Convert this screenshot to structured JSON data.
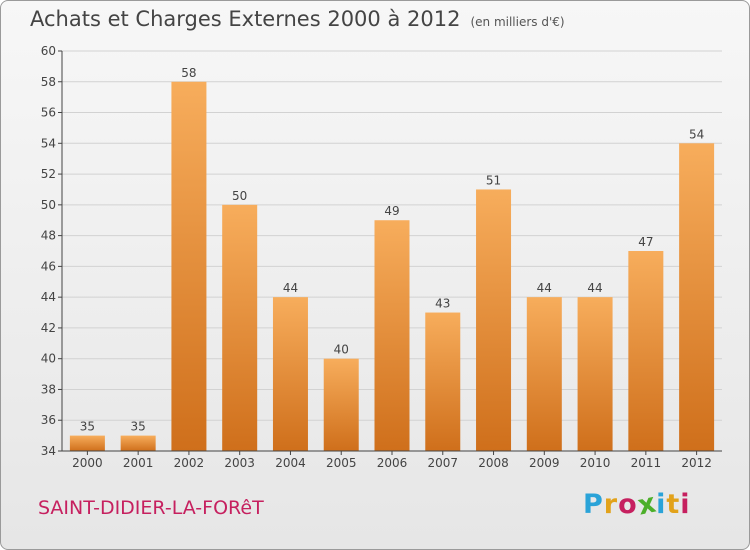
{
  "header": {
    "title": "Achats et Charges Externes 2000 à 2012",
    "subtitle": "(en milliers d'€)"
  },
  "footer": {
    "commune": "SAINT-DIDIER-LA-FORêT",
    "logo_letters": [
      "P",
      "r",
      "o",
      "x",
      "i",
      "t",
      "i"
    ],
    "logo_colors": [
      "#2aa3d8",
      "#e2a21a",
      "#c6205f",
      "#4caf2a",
      "#2aa3d8",
      "#e2a21a",
      "#c6205f"
    ]
  },
  "colors": {
    "bar_light": "#f7ad5c",
    "bar_dark": "#cf6f1b",
    "axis": "#444444",
    "grid": "#d2d2d2"
  },
  "chart_data": {
    "type": "bar",
    "title": "Achats et Charges Externes 2000 à 2012",
    "subtitle": "(en milliers d'€)",
    "categories": [
      "2000",
      "2001",
      "2002",
      "2003",
      "2004",
      "2005",
      "2006",
      "2007",
      "2008",
      "2009",
      "2010",
      "2011",
      "2012"
    ],
    "values": [
      35,
      35,
      58,
      50,
      44,
      40,
      49,
      43,
      51,
      44,
      44,
      47,
      54
    ],
    "data_labels": [
      "35",
      "35",
      "58",
      "50",
      "44",
      "40",
      "49",
      "43",
      "51",
      "44",
      "44",
      "47",
      "54"
    ],
    "ylim": [
      34,
      60
    ],
    "yticks": [
      34,
      36,
      38,
      40,
      42,
      44,
      46,
      48,
      50,
      52,
      54,
      56,
      58,
      60
    ],
    "ytick_labels": [
      "34",
      "36",
      "38",
      "40",
      "42",
      "44",
      "46",
      "48",
      "50",
      "52",
      "54",
      "56",
      "58",
      "60"
    ],
    "grid": true,
    "xlabel": "",
    "ylabel": ""
  }
}
